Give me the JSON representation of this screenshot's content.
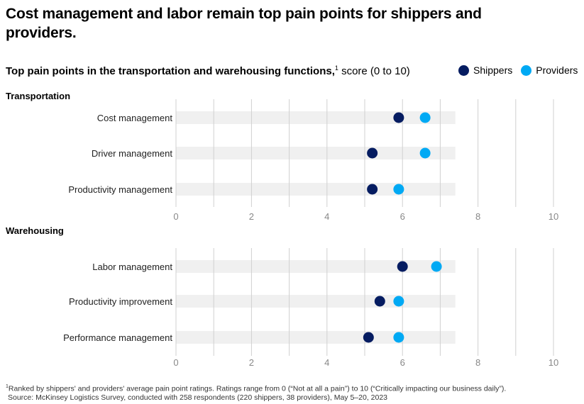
{
  "title": "Cost management and labor remain top pain points for shippers and providers.",
  "subtitle": {
    "bold": "Top pain points in the transportation and warehousing functions,",
    "footnote_marker": "1",
    "rest": " score (0 to 10)"
  },
  "colors": {
    "shippers": "#051c61",
    "providers": "#00a9f4",
    "track": "#f0f0f0",
    "grid": "#d0d0d0"
  },
  "footnote": {
    "marker": "1",
    "line1": "Ranked by shippers' and providers' average pain point ratings. Ratings range from 0 (“Not at all a pain”) to 10 (“Critically impacting our business daily”).",
    "line2": "Source: McKinsey Logistics Survey, conducted with 258 respondents (220 shippers, 38 providers), May 5–20, 2023"
  },
  "chart_data": {
    "type": "dot",
    "title": "Top pain points in the transportation and warehousing functions, score (0 to 10)",
    "xlim": [
      0,
      10
    ],
    "xticks": [
      0,
      2,
      4,
      6,
      8,
      10
    ],
    "legend": [
      {
        "key": "shippers",
        "label": "Shippers"
      },
      {
        "key": "providers",
        "label": "Providers"
      }
    ],
    "panels": [
      {
        "name": "Transportation",
        "categories": [
          "Cost management",
          "Driver management",
          "Productivity management"
        ],
        "series": [
          {
            "name": "Shippers",
            "key": "shippers",
            "values": [
              5.9,
              5.2,
              5.2
            ]
          },
          {
            "name": "Providers",
            "key": "providers",
            "values": [
              6.6,
              6.6,
              5.9
            ]
          }
        ]
      },
      {
        "name": "Warehousing",
        "categories": [
          "Labor management",
          "Productivity improvement",
          "Performance management"
        ],
        "series": [
          {
            "name": "Shippers",
            "key": "shippers",
            "values": [
              6.0,
              5.4,
              5.1
            ]
          },
          {
            "name": "Providers",
            "key": "providers",
            "values": [
              6.9,
              5.9,
              5.9
            ]
          }
        ]
      }
    ]
  }
}
